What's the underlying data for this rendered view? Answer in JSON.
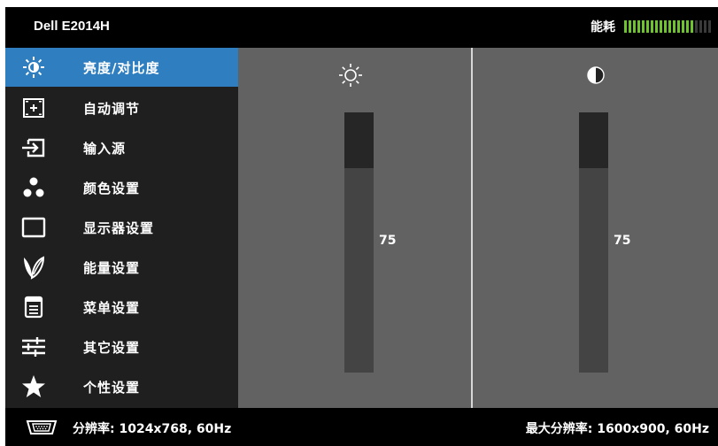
{
  "header": {
    "model": "Dell E2014H",
    "energy_label": "能耗",
    "energy_level": 0.8
  },
  "menu": [
    {
      "label": "亮度/对比度",
      "icon": "brightness-icon",
      "active": true
    },
    {
      "label": "自动调节",
      "icon": "auto-adjust-icon",
      "active": false
    },
    {
      "label": "输入源",
      "icon": "input-source-icon",
      "active": false
    },
    {
      "label": "颜色设置",
      "icon": "color-settings-icon",
      "active": false
    },
    {
      "label": "显示器设置",
      "icon": "display-settings-icon",
      "active": false
    },
    {
      "label": "能量设置",
      "icon": "energy-settings-icon",
      "active": false
    },
    {
      "label": "菜单设置",
      "icon": "menu-settings-icon",
      "active": false
    },
    {
      "label": "其它设置",
      "icon": "other-settings-icon",
      "active": false
    },
    {
      "label": "个性设置",
      "icon": "personalize-icon",
      "active": false
    }
  ],
  "brightness": {
    "icon": "brightness-icon",
    "value": "75",
    "level": 75
  },
  "contrast": {
    "icon": "contrast-icon",
    "value": "75",
    "level": 75
  },
  "footer": {
    "icon": "vga-connector-icon",
    "current_resolution": "分辨率: 1024x768, 60Hz",
    "max_resolution": "最大分辨率: 1600x900, 60Hz"
  },
  "colors": {
    "accent": "#2e7ec0",
    "energy_bar": "#6ec32f",
    "panel": "#626262"
  }
}
